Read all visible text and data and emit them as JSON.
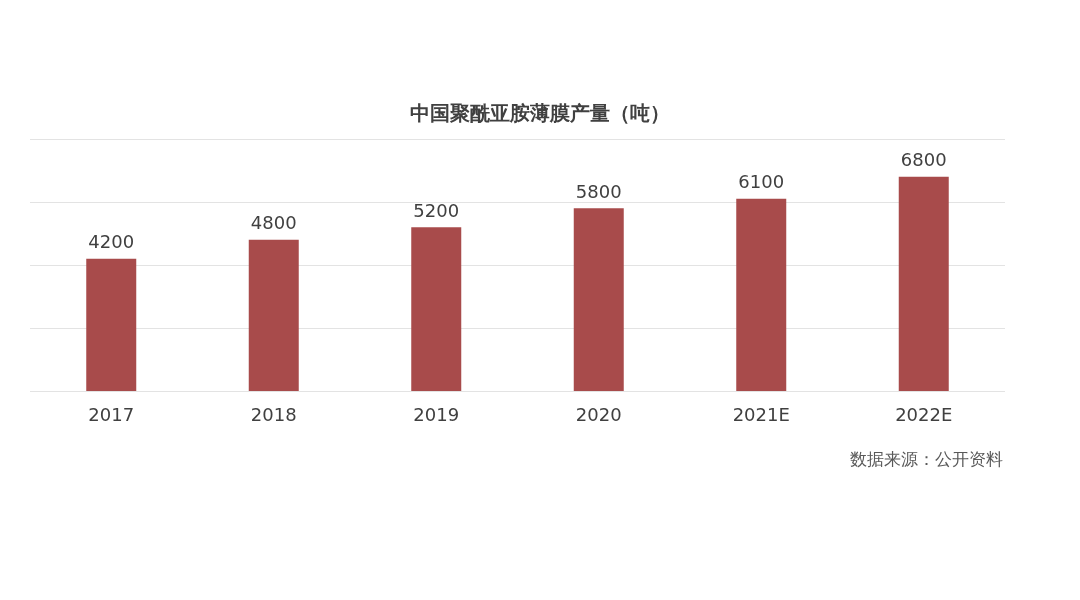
{
  "chart_data": {
    "type": "bar",
    "title": "中国聚酰亚胺薄膜产量（吨）",
    "categories": [
      "2017",
      "2018",
      "2019",
      "2020",
      "2021E",
      "2022E"
    ],
    "values": [
      4200,
      4800,
      5200,
      5800,
      6100,
      6800
    ],
    "color": "#a84b4b",
    "ylim": [
      0,
      8000
    ],
    "yticks": [
      0,
      2000,
      4000,
      6000,
      8000
    ],
    "grid": true,
    "tick_labels": "x",
    "data_labels": true,
    "annotations": [
      "数据来源：公开资料"
    ]
  }
}
